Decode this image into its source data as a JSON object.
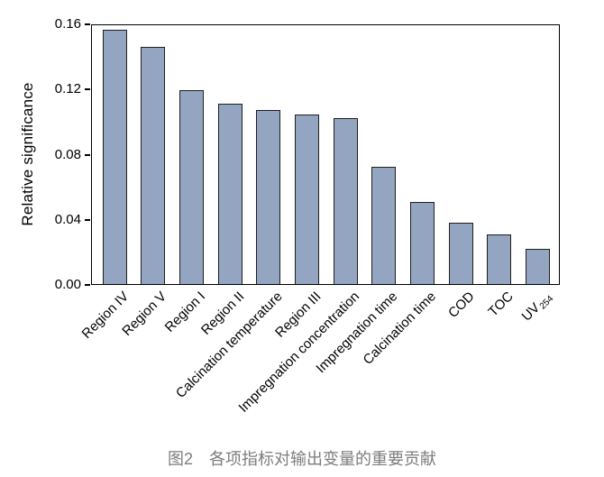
{
  "chart_data": {
    "type": "bar",
    "title": "",
    "xlabel": "",
    "ylabel": "Relative significance",
    "ylim": [
      0,
      0.16
    ],
    "yticks": [
      0,
      0.04,
      0.08,
      0.12,
      0.16
    ],
    "ytick_decimals": 2,
    "grid": false,
    "legend": null,
    "bar_color": "#93a5c1",
    "bar_edge_color": "#1f1f1f",
    "categories": [
      "Region IV",
      "Region V",
      "Region I",
      "Region II",
      "Calcination temperature",
      "Region III",
      "Impregnation concentration",
      "Impregnation time",
      "Calcination time",
      "COD",
      "TOC",
      "UV254"
    ],
    "values": [
      0.158,
      0.147,
      0.12,
      0.112,
      0.108,
      0.105,
      0.103,
      0.073,
      0.051,
      0.038,
      0.031,
      0.022
    ]
  },
  "caption": {
    "prefix": "图2",
    "text": "各项指标对输出变量的重要贡献"
  }
}
